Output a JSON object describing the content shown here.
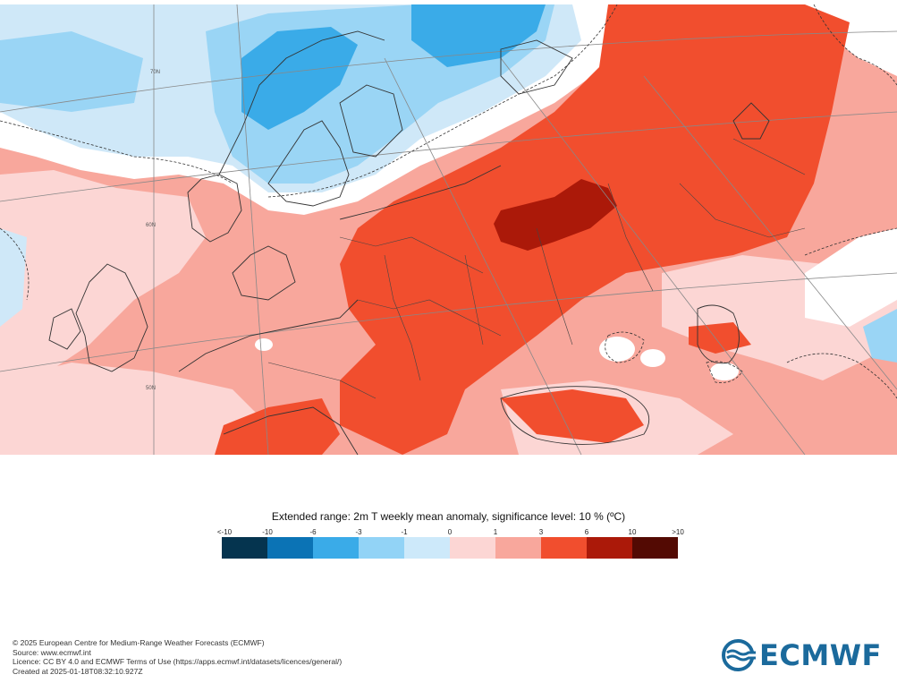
{
  "legend": {
    "title": "Extended range: 2m T weekly mean anomaly, significance level: 10 % (ºC)",
    "ticks": [
      "<-10",
      "-10",
      "-6",
      "-3",
      "-1",
      "0",
      "1",
      "3",
      "6",
      "10",
      ">10"
    ],
    "colors": [
      "#05344f",
      "#0b73b5",
      "#3aabe8",
      "#92d3f6",
      "#cde9fa",
      "#fcd6d4",
      "#f8a79c",
      "#f14e2e",
      "#ab1909",
      "#530a03"
    ]
  },
  "map": {
    "latitude_labels": [
      "70N",
      "60N",
      "50N"
    ],
    "colors": {
      "white": "#ffffff",
      "light_blue": "#cfe8f8",
      "mid_blue": "#9ad5f5",
      "blue": "#3aabe8",
      "pink": "#fcd6d4",
      "salmon": "#f8a79c",
      "red": "#f14e2e",
      "dark_red": "#ab1909",
      "coast": "#333333"
    }
  },
  "footer": {
    "copyright": "© 2025 European Centre for Medium-Range Weather Forecasts (ECMWF)",
    "source": "Source: www.ecmwf.int",
    "licence": "Licence: CC BY 4.0 and ECMWF Terms of Use (https://apps.ecmwf.int/datasets/licences/general/)",
    "created": "Created at 2025-01-18T08:32:10.927Z"
  },
  "logo": {
    "text": "ECMWF",
    "color": "#1b6a9c"
  }
}
